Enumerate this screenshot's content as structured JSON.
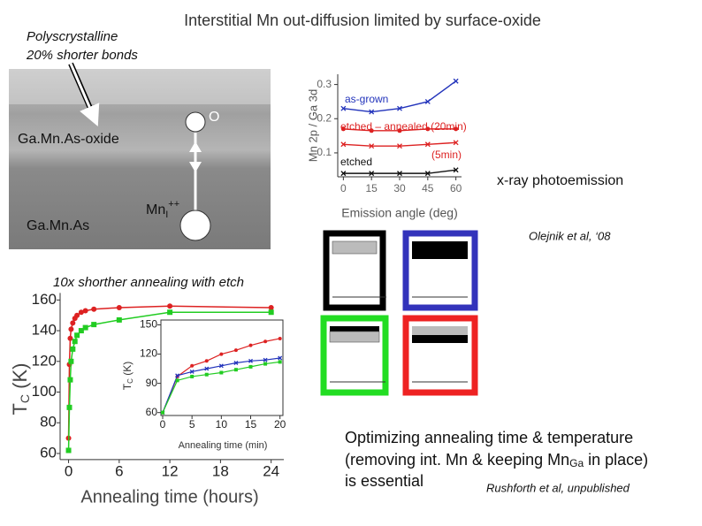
{
  "title": "Interstitial Mn out-diffusion limited by surface-oxide",
  "image_labels": {
    "polycrystalline": "Polyscrystalline",
    "shorter_bonds": "20% shorter bonds",
    "oxide": "Ga.Mn.As-oxide",
    "bulk": "Ga.Mn.As",
    "o_atom": "O",
    "mn_atom": "Mn",
    "mn_sub": "I",
    "mn_sup": "++"
  },
  "xps_label": "x-ray photoemission",
  "xps_citation": "Olejnik et al, ‘08",
  "annealing_note": "10x shorther annealing with etch",
  "conclusion": {
    "line1": "Optimizing annealing time & temperature",
    "line2_start": "(removing int. Mn",
    "line2_sub": "Ga",
    "line2_mid": " & keeping Mn",
    "line2_end": " in place)",
    "line3": "is essential",
    "citation": "Rushforth et al, unpublished"
  },
  "photoemission_chart": {
    "type": "line",
    "x_label": "Emission angle (deg)",
    "y_label": "Mn 2p / Ga 3d",
    "xlim": [
      -3,
      63
    ],
    "ylim": [
      0.03,
      0.33
    ],
    "xticks": [
      0,
      15,
      30,
      45,
      60
    ],
    "yticks": [
      0.1,
      0.2,
      0.3
    ],
    "x": [
      0,
      15,
      30,
      45,
      60
    ],
    "series": [
      {
        "name": "as-grown",
        "color": "#2233bb",
        "marker": "x",
        "values": [
          0.23,
          0.22,
          0.23,
          0.25,
          0.31
        ]
      },
      {
        "name": "etched – annealed (20min)",
        "color": "#dd2222",
        "marker": "circle",
        "values": [
          0.17,
          0.165,
          0.165,
          0.17,
          0.17
        ]
      },
      {
        "name": "(5min)",
        "color": "#dd2222",
        "marker": "x",
        "values": [
          0.125,
          0.12,
          0.12,
          0.125,
          0.13
        ]
      },
      {
        "name": "etched",
        "color": "#111111",
        "marker": "x",
        "values": [
          0.04,
          0.04,
          0.04,
          0.04,
          0.05
        ]
      }
    ]
  },
  "tc_chart": {
    "type": "line",
    "x_label": "Annealing time (hours)",
    "y_label": {
      "main": "T",
      "sub": "C",
      "unit": " (K)"
    },
    "xlim": [
      -1,
      25.5
    ],
    "ylim": [
      56,
      164.6
    ],
    "xticks": [
      0,
      6,
      12,
      18,
      24
    ],
    "yticks": [
      60,
      80,
      100,
      120,
      140,
      160
    ],
    "x": [
      0,
      0.1,
      0.2,
      0.3,
      0.5,
      0.75,
      1,
      1.5,
      2,
      3,
      6,
      12,
      24
    ],
    "series": [
      {
        "color": "#dd2222",
        "marker": "circle",
        "values": [
          70,
          118,
          135,
          141,
          145,
          148,
          150,
          152,
          153,
          154,
          155,
          156,
          155
        ]
      },
      {
        "color": "#22cc22",
        "marker": "square",
        "values": [
          62,
          90,
          108,
          120,
          128,
          133,
          137,
          140,
          142,
          144,
          147,
          152,
          152
        ]
      }
    ]
  },
  "inset_chart": {
    "type": "line",
    "x_label": "Annealing time (min)",
    "y_label": {
      "main": "T",
      "sub": "C",
      "unit": " (K)"
    },
    "xlim": [
      -0.3,
      20.5
    ],
    "ylim": [
      57,
      155
    ],
    "xticks": [
      0,
      5,
      10,
      15,
      20
    ],
    "yticks": [
      60,
      90,
      120,
      150
    ],
    "x": [
      0,
      2.5,
      5,
      7.5,
      10,
      12.5,
      15,
      17.5,
      20
    ],
    "series": [
      {
        "color": "#dd2222",
        "marker": "circle",
        "values": [
          60,
          97,
          108,
          113,
          120,
          124,
          129,
          133,
          136
        ]
      },
      {
        "color": "#2233bb",
        "marker": "x",
        "values": [
          60,
          98,
          102,
          105,
          108,
          111,
          113,
          114,
          116
        ]
      },
      {
        "color": "#22cc22",
        "marker": "square",
        "values": [
          60,
          93,
          97,
          99,
          101,
          104,
          107,
          110,
          112
        ]
      }
    ]
  }
}
